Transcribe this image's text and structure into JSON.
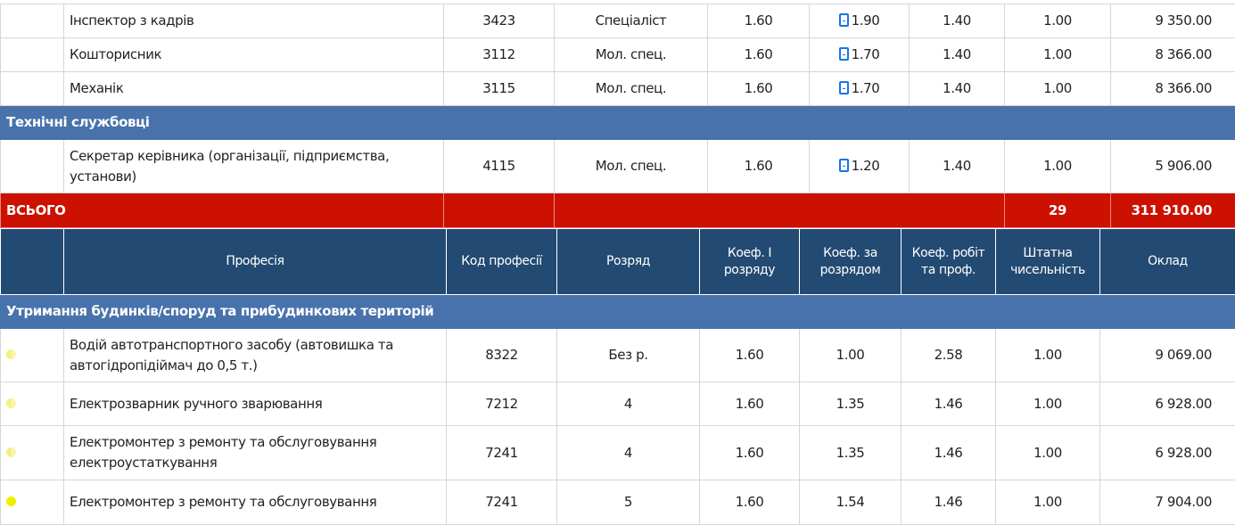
{
  "top_rows": [
    {
      "name": "Інспектор з кадрів",
      "code": "3423",
      "grade": "Спеціаліст",
      "k1": "1.60",
      "kg": "1.90",
      "kw": "1.40",
      "staff": "1.00",
      "salary": "9 350.00"
    },
    {
      "name": "Кошторисник",
      "code": "3112",
      "grade": "Мол. спец.",
      "k1": "1.60",
      "kg": "1.70",
      "kw": "1.40",
      "staff": "1.00",
      "salary": "8 366.00"
    },
    {
      "name": "Механік",
      "code": "3115",
      "grade": "Мол. спец.",
      "k1": "1.60",
      "kg": "1.70",
      "kw": "1.40",
      "staff": "1.00",
      "salary": "8 366.00"
    }
  ],
  "section1": "Технічні службовці",
  "row_secretary": {
    "name": "Секретар керівника (організації, підприємства, установи)",
    "code": "4115",
    "grade": "Мол. спец.",
    "k1": "1.60",
    "kg": "1.20",
    "kw": "1.40",
    "staff": "1.00",
    "salary": "5 906.00"
  },
  "total": {
    "label": "ВСЬОГО",
    "staff": "29",
    "salary": "311 910.00"
  },
  "header": {
    "profession": "Професія",
    "code": "Код професії",
    "grade": "Розряд",
    "k1": "Коеф. І розряду",
    "kg": "Коеф. за розрядом",
    "kw": "Коеф. робіт та проф.",
    "staff": "Штатна чисельність",
    "salary": "Оклад"
  },
  "section2": "Утримання будинків/споруд та прибудинкових територій",
  "bottom_rows": [
    {
      "name": "Водій автотранспортного засобу (автовишка та автогідропідіймач до 0,5 т.)",
      "code": "8322",
      "grade": "Без р.",
      "k1": "1.60",
      "kg": "1.00",
      "kw": "2.58",
      "staff": "1.00",
      "salary": "9 069.00"
    },
    {
      "name": "Електрозварник ручного зварювання",
      "code": "7212",
      "grade": "4",
      "k1": "1.60",
      "kg": "1.35",
      "kw": "1.46",
      "staff": "1.00",
      "salary": "6 928.00"
    },
    {
      "name": "Електромонтер з ремонту та обслуговування електроустаткування",
      "code": "7241",
      "grade": "4",
      "k1": "1.60",
      "kg": "1.35",
      "kw": "1.46",
      "staff": "1.00",
      "salary": "6 928.00"
    },
    {
      "name": "Електромонтер з ремонту та обслуговування",
      "code": "7241",
      "grade": "5",
      "k1": "1.60",
      "kg": "1.54",
      "kw": "1.46",
      "staff": "1.00",
      "salary": "7 904.00"
    }
  ],
  "icons": {
    "doc": "document-icon",
    "status_half": "half-moon-status-icon",
    "status_full": "full-status-icon"
  }
}
